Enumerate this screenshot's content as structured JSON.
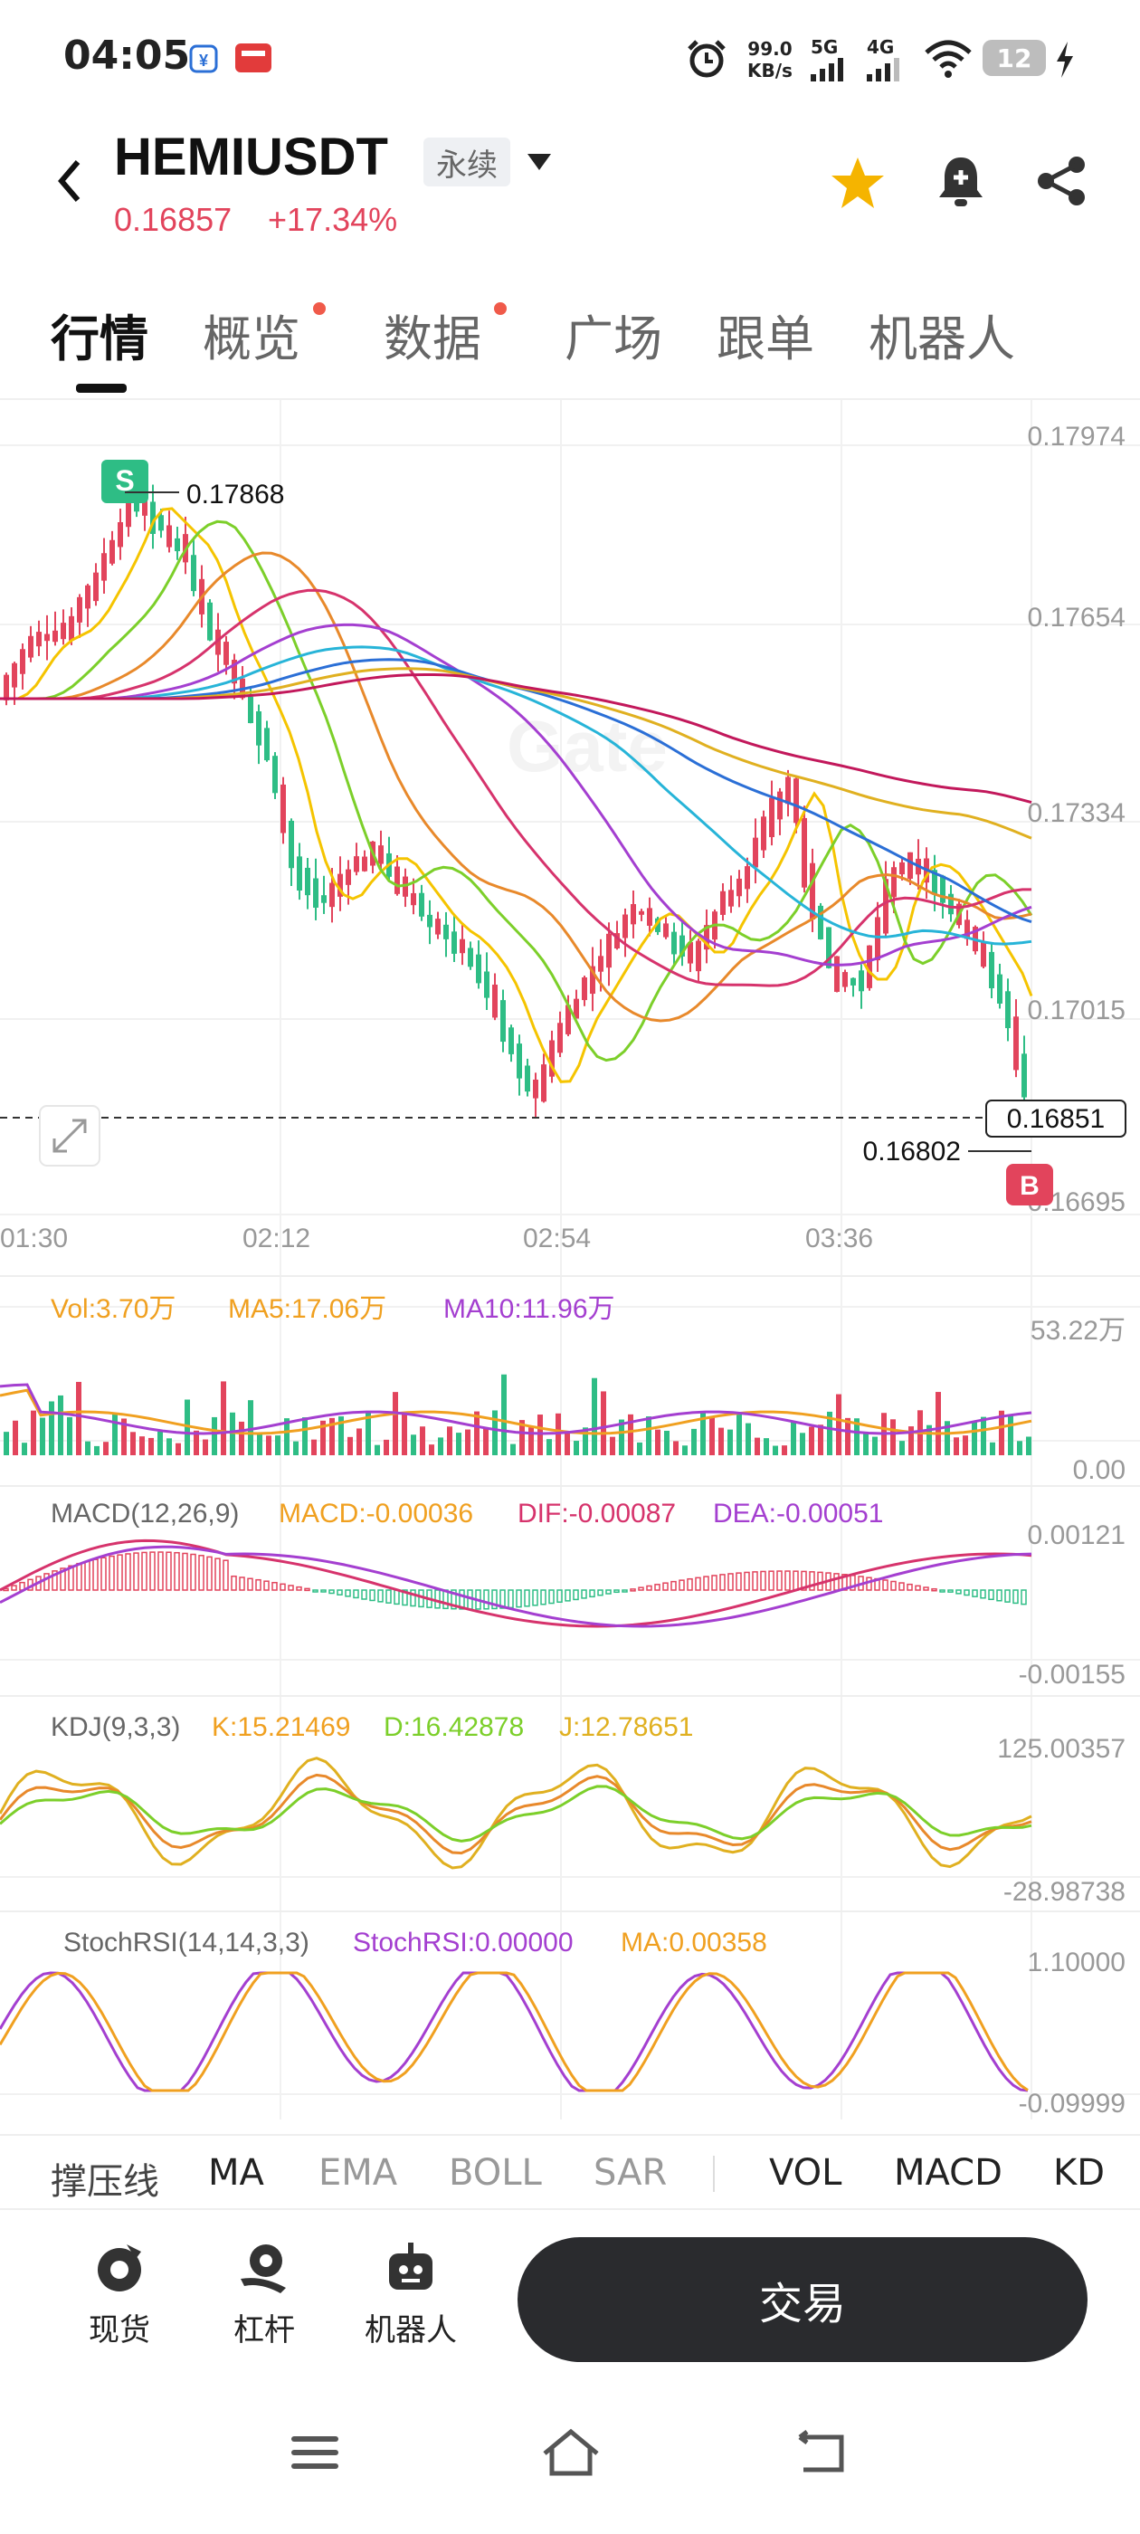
{
  "status_bar": {
    "time": "04:05",
    "net_speed_value": "99.0",
    "net_speed_unit": "KB/s",
    "sim1": "5G",
    "sim2": "4G",
    "battery": "12"
  },
  "header": {
    "pair": "HEMIUSDT",
    "contract_type": "永续",
    "last_price": "0.16857",
    "change_pct": "+17.34%"
  },
  "tabs": [
    {
      "label": "行情",
      "active": true
    },
    {
      "label": "概览",
      "dot": true
    },
    {
      "label": "数据",
      "dot": true
    },
    {
      "label": "广场"
    },
    {
      "label": "跟单"
    },
    {
      "label": "机器人"
    }
  ],
  "main_chart": {
    "price_axis": [
      "0.17974",
      "0.17654",
      "0.17334",
      "0.17015",
      "0.16695"
    ],
    "time_axis": [
      "01:30",
      "02:12",
      "02:54",
      "03:36"
    ],
    "high_marker": "0.17868",
    "high_badge": "S",
    "low_marker": "0.16802",
    "current_price_tag": "0.16851",
    "buy_badge": "B",
    "watermark": "Gate"
  },
  "volume_panel": {
    "vol": "Vol:3.70万",
    "ma5": "MA5:17.06万",
    "ma10": "MA10:11.96万",
    "axis_top": "53.22万",
    "axis_bottom": "0.00"
  },
  "macd_panel": {
    "title": "MACD(12,26,9)",
    "macd": "MACD:-0.00036",
    "dif": "DIF:-0.00087",
    "dea": "DEA:-0.00051",
    "axis_top": "0.00121",
    "axis_bottom": "-0.00155"
  },
  "kdj_panel": {
    "title": "KDJ(9,3,3)",
    "k": "K:15.21469",
    "d": "D:16.42878",
    "j": "J:12.78651",
    "axis_top": "125.00357",
    "axis_bottom": "-28.98738"
  },
  "stochrsi_panel": {
    "title": "StochRSI(14,14,3,3)",
    "value": "StochRSI:0.00000",
    "ma": "MA:0.00358",
    "axis_top": "1.10000",
    "axis_bottom": "-0.09999"
  },
  "indicator_tabs": [
    "撑压线",
    "MA",
    "EMA",
    "BOLL",
    "SAR",
    "VOL",
    "MACD",
    "KD"
  ],
  "bottom_nav": {
    "spot": "现货",
    "margin": "杠杆",
    "bot": "机器人",
    "trade": "交易"
  },
  "colors": {
    "up": "#e2445c",
    "down": "#2ebd85",
    "accent_star": "#f5b400"
  }
}
